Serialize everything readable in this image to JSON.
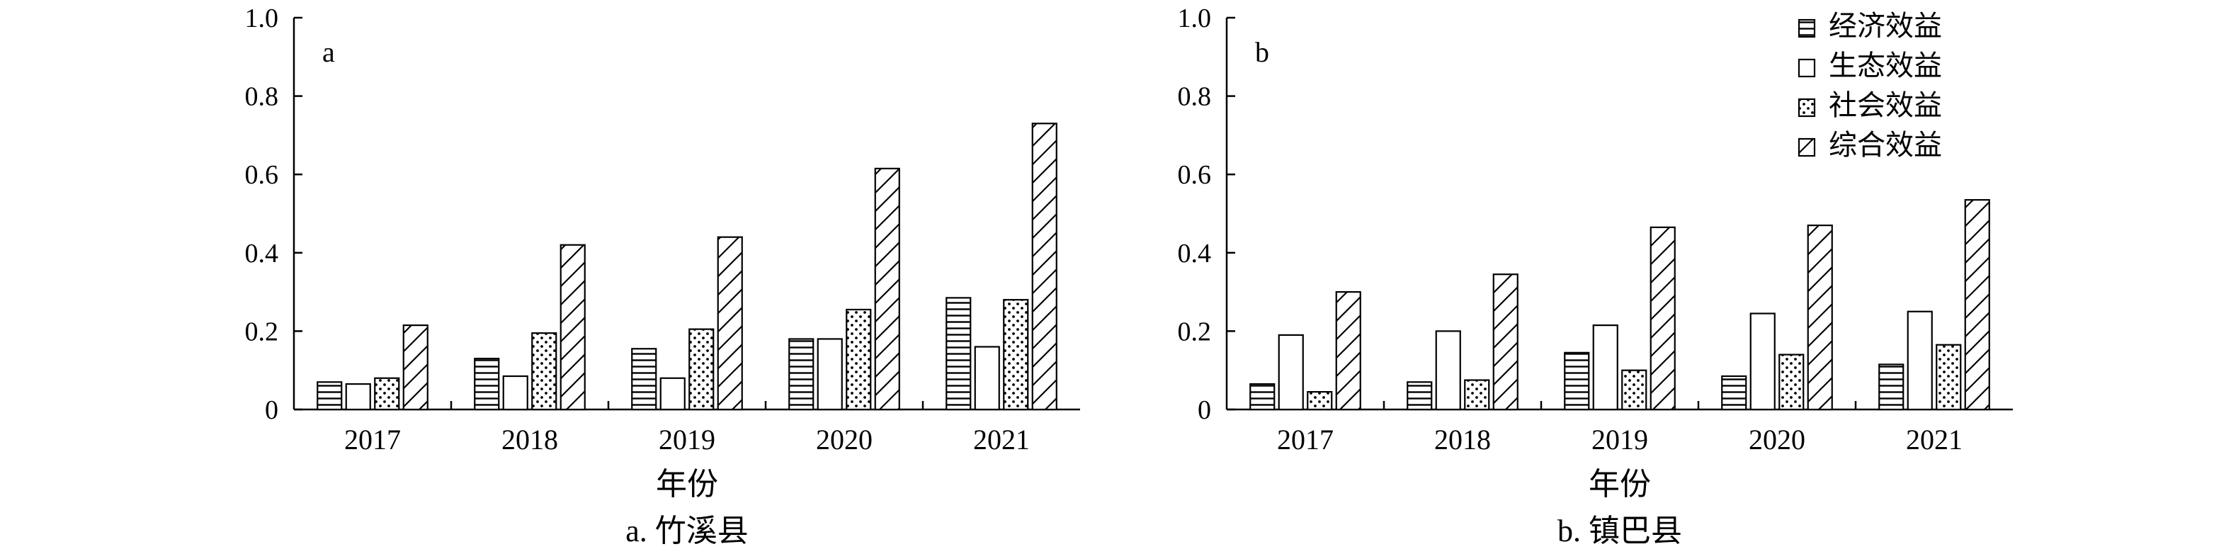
{
  "chart_data": [
    {
      "type": "bar",
      "panel_label": "a",
      "caption": "a. 竹溪县",
      "xlabel": "年份",
      "ylabel": "",
      "ylim": [
        0,
        1.0
      ],
      "yticks": [
        "0",
        "0.2",
        "0.4",
        "0.6",
        "0.8",
        "1.0"
      ],
      "categories": [
        "2017",
        "2018",
        "2019",
        "2020",
        "2021"
      ],
      "series": [
        {
          "name": "经济效益",
          "values": [
            0.07,
            0.13,
            0.155,
            0.18,
            0.285
          ]
        },
        {
          "name": "生态效益",
          "values": [
            0.065,
            0.085,
            0.08,
            0.18,
            0.16
          ]
        },
        {
          "name": "社会效益",
          "values": [
            0.08,
            0.195,
            0.205,
            0.255,
            0.28
          ]
        },
        {
          "name": "综合效益",
          "values": [
            0.215,
            0.42,
            0.44,
            0.615,
            0.73
          ]
        }
      ],
      "legend": false
    },
    {
      "type": "bar",
      "panel_label": "b",
      "caption": "b. 镇巴县",
      "xlabel": "年份",
      "ylabel": "",
      "ylim": [
        0,
        1.0
      ],
      "yticks": [
        "0",
        "0.2",
        "0.4",
        "0.6",
        "0.8",
        "1.0"
      ],
      "categories": [
        "2017",
        "2018",
        "2019",
        "2020",
        "2021"
      ],
      "series": [
        {
          "name": "经济效益",
          "values": [
            0.065,
            0.07,
            0.145,
            0.085,
            0.115
          ]
        },
        {
          "name": "生态效益",
          "values": [
            0.19,
            0.2,
            0.215,
            0.245,
            0.25
          ]
        },
        {
          "name": "社会效益",
          "values": [
            0.045,
            0.075,
            0.1,
            0.14,
            0.165
          ]
        },
        {
          "name": "综合效益",
          "values": [
            0.3,
            0.345,
            0.465,
            0.47,
            0.535
          ]
        }
      ],
      "legend": true,
      "legend_position": "top-right"
    }
  ],
  "series_patterns": [
    "horizontal-lines",
    "empty",
    "dots",
    "diagonal-lines"
  ]
}
